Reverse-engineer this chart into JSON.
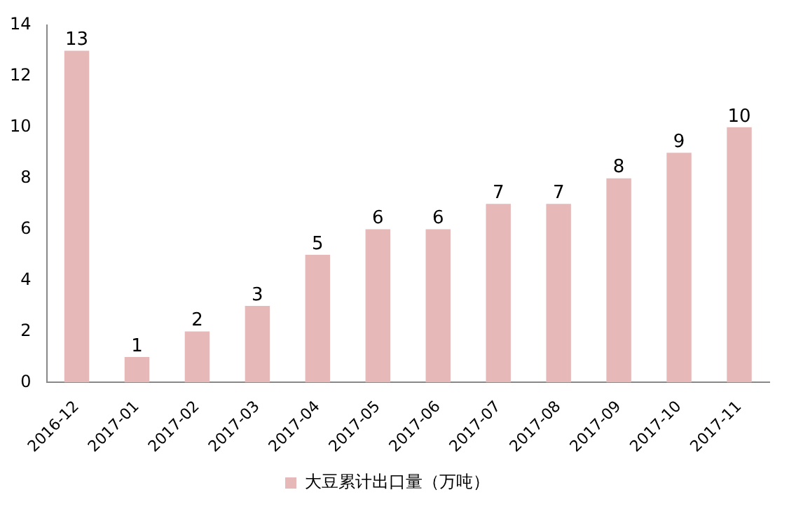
{
  "chart_data": {
    "type": "bar",
    "categories": [
      "2016-12",
      "2017-01",
      "2017-02",
      "2017-03",
      "2017-04",
      "2017-05",
      "2017-06",
      "2017-07",
      "2017-08",
      "2017-09",
      "2017-10",
      "2017-11"
    ],
    "series": [
      {
        "name": "大豆累计出口量（万吨）",
        "color": "#e6b9b8",
        "values": [
          13,
          1,
          2,
          3,
          5,
          6,
          6,
          7,
          7,
          8,
          9,
          10
        ]
      }
    ],
    "ylim": [
      0,
      14
    ],
    "yticks": [
      0,
      2,
      4,
      6,
      8,
      10,
      12,
      14
    ],
    "grid": false,
    "legend": "bottom",
    "data_labels": true
  }
}
